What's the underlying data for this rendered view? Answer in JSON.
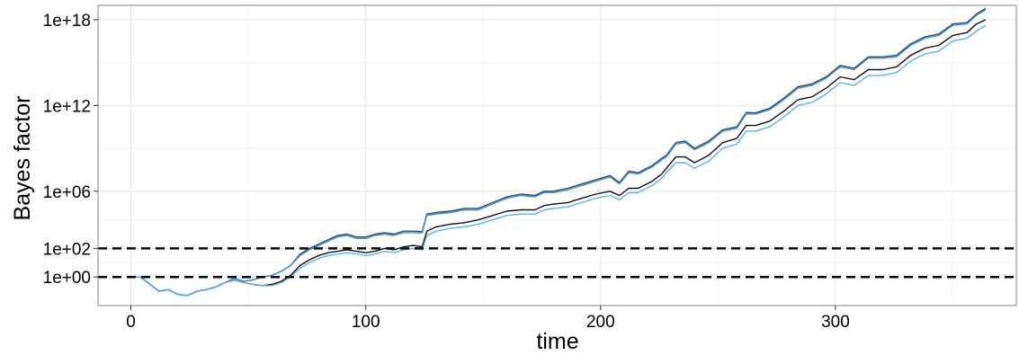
{
  "chart_data": {
    "type": "line",
    "title": "",
    "xlabel": "time",
    "ylabel": "Bayes factor",
    "y_scale": "log10",
    "xlim": [
      -14,
      377
    ],
    "ylim": [
      0.01,
      1e+19
    ],
    "x_ticks": [
      0,
      100,
      200,
      300
    ],
    "x_tick_labels": [
      "0",
      "100",
      "200",
      "300"
    ],
    "y_ticks": [
      1.0,
      100.0,
      1000000.0,
      1000000000000.0,
      1e+18
    ],
    "y_tick_labels": [
      "1e+00",
      "1e+02",
      "1e+06",
      "1e+12",
      "1e+18"
    ],
    "grid": true,
    "legend": "none",
    "reference_lines": [
      {
        "y": 1,
        "style": "dashed",
        "color": "#000000"
      },
      {
        "y": 100,
        "style": "dashed",
        "color": "#000000"
      }
    ],
    "series": [
      {
        "color": "#1f4e79",
        "x": [
          0,
          4,
          8,
          12,
          16,
          20,
          24,
          28,
          32,
          36,
          40,
          44,
          48,
          52,
          56,
          60,
          64,
          68,
          72,
          76,
          80,
          84,
          88,
          92,
          96,
          100,
          104,
          108,
          112,
          116,
          120,
          124,
          126,
          130,
          136,
          142,
          148,
          154,
          160,
          166,
          172,
          176,
          180,
          186,
          192,
          198,
          204,
          208,
          212,
          216,
          222,
          226,
          228,
          232,
          236,
          240,
          246,
          252,
          258,
          262,
          266,
          272,
          278,
          284,
          290,
          296,
          302,
          308,
          314,
          320,
          326,
          332,
          338,
          344,
          350,
          356,
          360,
          364
        ],
        "y": [
          1,
          1,
          0.32,
          0.1,
          0.13,
          0.06,
          0.05,
          0.1,
          0.13,
          0.2,
          0.4,
          0.8,
          0.5,
          0.63,
          1,
          1.3,
          2.5,
          6.3,
          40,
          100,
          200,
          400,
          800,
          1000,
          630,
          630,
          1000,
          1260,
          1000,
          1600,
          1600,
          1500,
          25000,
          32000,
          40000,
          63000,
          63000,
          160000,
          400000,
          630000,
          500000,
          1000000,
          1000000,
          1600000,
          3200000,
          6300000,
          12600000,
          4000000,
          25000000,
          20000000,
          63000000,
          200000000,
          320000000,
          2500000000,
          3200000000,
          1000000000,
          3200000000,
          20000000000,
          32000000000,
          320000000000,
          300000000000,
          630000000000,
          3200000000000,
          20000000000000,
          32000000000000,
          100000000000000,
          630000000000000,
          400000000000000,
          2500000000000000,
          2500000000000000,
          3200000000000000,
          20000000000000000,
          63000000000000000,
          100000000000000000,
          500000000000000000,
          630000000000000000,
          2500000000000000000,
          6300000000000000000
        ]
      },
      {
        "color": "#4a90c4",
        "x": [
          0,
          4,
          8,
          12,
          16,
          20,
          24,
          28,
          32,
          36,
          40,
          44,
          48,
          52,
          56,
          60,
          64,
          68,
          72,
          76,
          80,
          84,
          88,
          92,
          96,
          100,
          104,
          108,
          112,
          116,
          120,
          124,
          126,
          130,
          136,
          142,
          148,
          154,
          160,
          166,
          172,
          176,
          180,
          186,
          192,
          198,
          204,
          208,
          212,
          216,
          222,
          226,
          228,
          232,
          236,
          240,
          246,
          252,
          258,
          262,
          266,
          272,
          278,
          284,
          290,
          296,
          302,
          308,
          314,
          320,
          326,
          332,
          338,
          344,
          350,
          356,
          360,
          364
        ],
        "y": [
          1,
          1,
          0.32,
          0.1,
          0.13,
          0.06,
          0.05,
          0.1,
          0.13,
          0.2,
          0.4,
          0.8,
          0.5,
          0.63,
          1,
          1.3,
          2.5,
          6.3,
          32,
          80,
          160,
          320,
          630,
          800,
          500,
          500,
          800,
          1000,
          800,
          1260,
          1260,
          1200,
          20000,
          25000,
          32000,
          50000,
          50000,
          126000,
          320000,
          500000,
          400000,
          800000,
          800000,
          1260000,
          2500000,
          5000000,
          10000000,
          3200000,
          20000000,
          16000000,
          50000000,
          160000000,
          250000000,
          2000000000,
          2500000000,
          800000000,
          2500000000,
          16000000000,
          25000000000,
          250000000000,
          250000000000,
          500000000000,
          2500000000000,
          16000000000000,
          25000000000000,
          80000000000000,
          500000000000000,
          320000000000000,
          2000000000000000,
          2000000000000000,
          2500000000000000,
          16000000000000000,
          50000000000000000,
          80000000000000000,
          400000000000000000,
          500000000000000000,
          2000000000000000000,
          5000000000000000000
        ]
      },
      {
        "color": "#111111",
        "x": [
          0,
          4,
          8,
          12,
          16,
          20,
          24,
          28,
          32,
          36,
          40,
          44,
          48,
          52,
          56,
          60,
          64,
          68,
          72,
          76,
          80,
          84,
          88,
          92,
          96,
          100,
          104,
          108,
          112,
          116,
          120,
          124,
          126,
          130,
          136,
          142,
          148,
          154,
          160,
          166,
          172,
          176,
          180,
          186,
          192,
          198,
          204,
          208,
          212,
          216,
          222,
          226,
          228,
          232,
          236,
          240,
          246,
          252,
          258,
          262,
          266,
          272,
          278,
          284,
          290,
          296,
          302,
          308,
          314,
          320,
          326,
          332,
          338,
          344,
          350,
          356,
          360,
          364
        ],
        "y": [
          1,
          1,
          0.32,
          0.1,
          0.13,
          0.06,
          0.05,
          0.1,
          0.13,
          0.2,
          0.4,
          0.6,
          0.4,
          0.3,
          0.25,
          0.3,
          0.5,
          1.3,
          6.3,
          16,
          32,
          50,
          63,
          80,
          63,
          50,
          63,
          100,
          80,
          126,
          160,
          130,
          1600,
          3200,
          5000,
          6300,
          10000,
          20000,
          40000,
          50000,
          50000,
          100000,
          126000,
          160000,
          320000,
          630000,
          1000000,
          500000,
          1600000,
          1600000,
          5000000,
          16000000,
          40000000,
          250000000,
          250000000,
          100000000,
          320000000,
          2500000000,
          5000000000,
          40000000000,
          40000000000,
          80000000000,
          400000000000,
          2500000000000,
          4000000000000,
          16000000000000,
          100000000000000,
          63000000000000,
          320000000000000,
          320000000000000,
          500000000000000,
          3200000000000000,
          10000000000000000,
          16000000000000000,
          80000000000000000,
          126000000000000000,
          500000000000000000,
          1000000000000000000
        ]
      },
      {
        "color": "#56b4e9",
        "x": [
          0,
          4,
          8,
          12,
          16,
          20,
          24,
          28,
          32,
          36,
          40,
          44,
          48,
          52,
          56,
          60,
          64,
          68,
          72,
          76,
          80,
          84,
          88,
          92,
          96,
          100,
          104,
          108,
          112,
          116,
          120,
          124,
          126,
          130,
          136,
          142,
          148,
          154,
          160,
          166,
          172,
          176,
          180,
          186,
          192,
          198,
          204,
          208,
          212,
          216,
          222,
          226,
          228,
          232,
          236,
          240,
          246,
          252,
          258,
          262,
          266,
          272,
          278,
          284,
          290,
          296,
          302,
          308,
          314,
          320,
          326,
          332,
          338,
          344,
          350,
          356,
          360,
          364
        ],
        "y": [
          1,
          1,
          0.32,
          0.1,
          0.13,
          0.06,
          0.05,
          0.1,
          0.13,
          0.2,
          0.4,
          0.6,
          0.4,
          0.3,
          0.25,
          0.25,
          0.4,
          1,
          4,
          10,
          20,
          32,
          40,
          50,
          40,
          32,
          40,
          63,
          50,
          80,
          100,
          80,
          800,
          1600,
          2500,
          3200,
          5000,
          10000,
          20000,
          25000,
          25000,
          50000,
          63000,
          80000,
          160000,
          320000,
          500000,
          250000,
          800000,
          800000,
          2500000,
          8000000,
          20000000,
          100000000,
          100000000,
          40000000,
          126000000,
          1000000000,
          2000000000,
          16000000000,
          16000000000,
          32000000000,
          160000000000,
          1000000000000,
          1600000000000,
          6300000000000,
          40000000000000,
          25000000000000,
          126000000000000,
          126000000000000,
          200000000000000,
          1260000000000000,
          4000000000000000,
          6300000000000000,
          32000000000000000,
          50000000000000000,
          160000000000000000,
          400000000000000000
        ]
      }
    ]
  }
}
